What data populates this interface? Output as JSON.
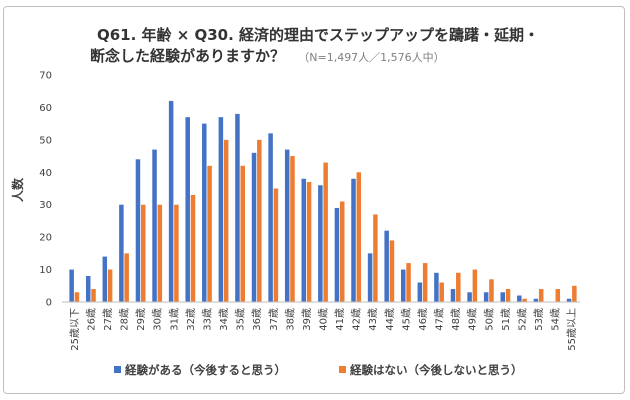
{
  "chart_data": {
    "type": "bar",
    "title_line1": "Q61. 年齢 × Q30. 経済的理由でステップアップを躊躇・延期・",
    "title_line2": "断念した経験がありますか？",
    "title_note": "（N=1,497人／1,576人中）",
    "ylabel": "人数",
    "ylim": [
      0,
      70
    ],
    "yticks": [
      0,
      10,
      20,
      30,
      40,
      50,
      60,
      70
    ],
    "grid": false,
    "legend_position": "bottom",
    "categories": [
      "25歳以下",
      "26歳",
      "27歳",
      "28歳",
      "29歳",
      "30歳",
      "31歳",
      "32歳",
      "33歳",
      "34歳",
      "35歳",
      "36歳",
      "37歳",
      "38歳",
      "39歳",
      "40歳",
      "41歳",
      "42歳",
      "43歳",
      "44歳",
      "45歳",
      "46歳",
      "47歳",
      "48歳",
      "49歳",
      "50歳",
      "51歳",
      "52歳",
      "53歳",
      "54歳",
      "55歳以上"
    ],
    "series": [
      {
        "name": "経験がある（今後すると思う）",
        "color": "#4472c4",
        "values": [
          10,
          8,
          14,
          30,
          44,
          47,
          62,
          57,
          55,
          57,
          58,
          46,
          52,
          47,
          38,
          36,
          29,
          38,
          15,
          22,
          10,
          6,
          9,
          4,
          3,
          3,
          3,
          2,
          1,
          0,
          1
        ]
      },
      {
        "name": "経験はない（今後しないと思う）",
        "color": "#ed7d31",
        "values": [
          3,
          4,
          10,
          15,
          30,
          30,
          30,
          33,
          42,
          50,
          42,
          50,
          35,
          45,
          37,
          43,
          31,
          40,
          27,
          19,
          12,
          12,
          6,
          9,
          10,
          7,
          4,
          1,
          4,
          4,
          5
        ]
      }
    ]
  }
}
